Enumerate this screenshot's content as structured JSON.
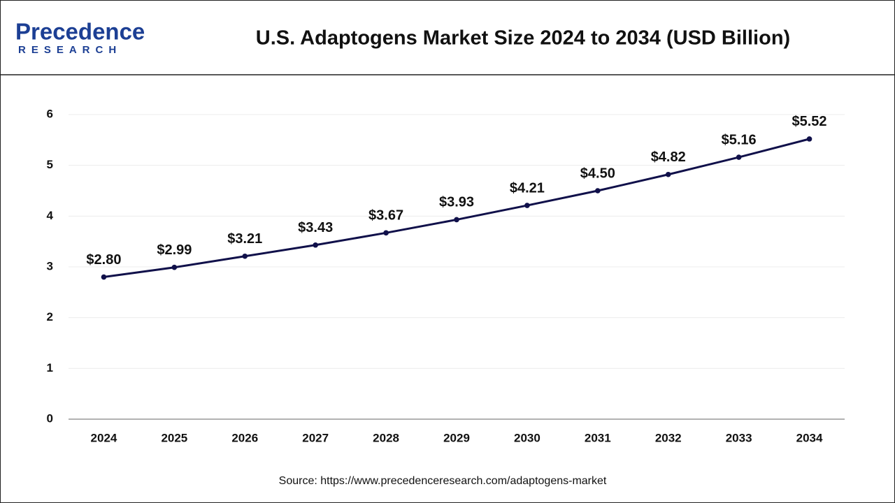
{
  "chart_data": {
    "type": "line",
    "title": "U.S. Adaptogens Market Size 2024 to 2034 (USD Billion)",
    "logo_text": "Precedence",
    "logo_subtext": "RESEARCH",
    "source": "Source: https://www.precedenceresearch.com/adaptogens-market",
    "categories": [
      "2024",
      "2025",
      "2026",
      "2027",
      "2028",
      "2029",
      "2030",
      "2031",
      "2032",
      "2033",
      "2034"
    ],
    "values": [
      2.8,
      2.99,
      3.21,
      3.43,
      3.67,
      3.93,
      4.21,
      4.5,
      4.82,
      5.16,
      5.52
    ],
    "value_labels": [
      "$2.80",
      "$2.99",
      "$3.21",
      "$3.43",
      "$3.67",
      "$3.93",
      "$4.21",
      "$4.50",
      "$4.82",
      "$5.16",
      "$5.52"
    ],
    "color": "#10104a",
    "ylim": [
      0,
      6
    ],
    "yticks": [
      0,
      1,
      2,
      3,
      4,
      5,
      6
    ],
    "grid": true
  }
}
